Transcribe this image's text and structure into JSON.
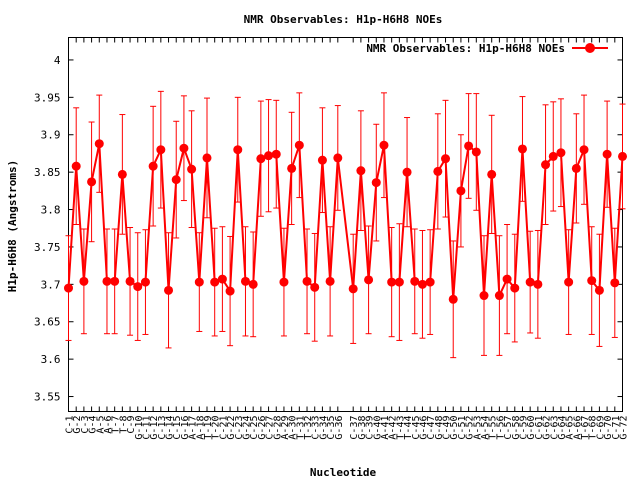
{
  "chart_data": {
    "type": "line",
    "title": "NMR Observables: H1p-H6H8 NOEs",
    "xlabel": "Nucleotide",
    "ylabel": "H1p-H6H8 (Angstroms)",
    "ylim": [
      3.53,
      4.03
    ],
    "yticks": [
      3.55,
      3.6,
      3.65,
      3.7,
      3.75,
      3.8,
      3.85,
      3.9,
      3.95,
      4
    ],
    "legend_position": "top-right",
    "grid": false,
    "categories": [
      "C-1",
      "G-2",
      "C-3",
      "G-4",
      "A-5",
      "A-6",
      "T-7",
      "T-8",
      "C-9",
      "G-10",
      "C-11",
      "G-12",
      "C-13",
      "G-14",
      "C-15",
      "G-16",
      "A-17",
      "A-18",
      "T-19",
      "T-20",
      "C-21",
      "G-22",
      "C-23",
      "G-24",
      "C-25",
      "G-26",
      "C-27",
      "G-28",
      "A-29",
      "A-30",
      "T-31",
      "T-32",
      "C-33",
      "G-34",
      "C-35",
      "G-36",
      "C-37",
      "G-38",
      "C-39",
      "G-40",
      "A-41",
      "A-42",
      "T-43",
      "T-44",
      "C-45",
      "G-46",
      "C-47",
      "G-48",
      "C-49",
      "G-50",
      "C-51",
      "G-52",
      "A-53",
      "A-54",
      "T-55",
      "T-56",
      "C-57",
      "G-58",
      "C-59",
      "G-60",
      "C-61",
      "G-62",
      "C-63",
      "G-64",
      "A-65",
      "A-66",
      "T-67",
      "T-68",
      "C-69",
      "G-70",
      "C-71",
      "G-72"
    ],
    "gaps_after": [
      36
    ],
    "series": [
      {
        "name": "NMR Observables: H1p-H6H8 NOEs",
        "color": "#ff0000",
        "values": [
          3.695,
          3.858,
          3.704,
          3.837,
          3.888,
          3.704,
          3.704,
          3.847,
          3.704,
          3.697,
          3.703,
          3.858,
          3.88,
          3.692,
          3.84,
          3.882,
          3.854,
          3.703,
          3.869,
          3.703,
          3.707,
          3.691,
          3.88,
          3.704,
          3.7,
          3.868,
          3.872,
          3.874,
          3.703,
          3.855,
          3.886,
          3.704,
          3.696,
          3.866,
          3.704,
          3.869,
          3.694,
          3.852,
          3.706,
          3.836,
          3.886,
          3.703,
          3.703,
          3.85,
          3.704,
          3.7,
          3.703,
          3.851,
          3.868,
          3.68,
          3.825,
          3.885,
          3.877,
          3.685,
          3.847,
          3.685,
          3.707,
          3.695,
          3.881,
          3.703,
          3.7,
          3.86,
          3.871,
          3.876,
          3.703,
          3.855,
          3.88,
          3.705,
          3.692,
          3.874,
          3.702,
          3.871
        ],
        "errors": [
          0.07,
          0.078,
          0.07,
          0.08,
          0.065,
          0.07,
          0.07,
          0.08,
          0.072,
          0.072,
          0.07,
          0.08,
          0.078,
          0.077,
          0.078,
          0.07,
          0.078,
          0.066,
          0.08,
          0.072,
          0.07,
          0.073,
          0.07,
          0.073,
          0.07,
          0.077,
          0.075,
          0.072,
          0.072,
          0.075,
          0.07,
          0.07,
          0.072,
          0.07,
          0.073,
          0.07,
          0.073,
          0.08,
          0.072,
          0.078,
          0.07,
          0.073,
          0.078,
          0.073,
          0.07,
          0.072,
          0.07,
          0.077,
          0.078,
          0.078,
          0.075,
          0.07,
          0.078,
          0.08,
          0.079,
          0.08,
          0.073,
          0.072,
          0.07,
          0.068,
          0.072,
          0.08,
          0.073,
          0.072,
          0.07,
          0.073,
          0.073,
          0.072,
          0.075,
          0.071,
          0.073,
          0.07
        ]
      }
    ]
  }
}
